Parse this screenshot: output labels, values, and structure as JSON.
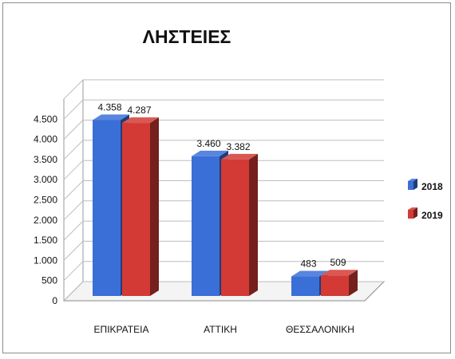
{
  "chart_data": {
    "type": "bar",
    "title": "ΛΗΣΤΕΙΕΣ",
    "categories": [
      "ΕΠΙΚΡΑΤΕΙΑ",
      "ΑΤΤΙΚΗ",
      "ΘΕΣΣΑΛΟΝΙΚΗ"
    ],
    "series": [
      {
        "name": "2018",
        "values": [
          4358,
          3460,
          483
        ],
        "labels": [
          "4.358",
          "3.460",
          "483"
        ],
        "color": "#3a6fd8"
      },
      {
        "name": "2019",
        "values": [
          4287,
          3382,
          509
        ],
        "labels": [
          "4.287",
          "3.382",
          "509"
        ],
        "color": "#d33a35"
      }
    ],
    "y_ticks": [
      0,
      500,
      1000,
      1500,
      2000,
      2500,
      3000,
      3500,
      4000,
      4500
    ],
    "y_tick_labels": [
      "0",
      "500",
      "1.000",
      "1.500",
      "2.000",
      "2.500",
      "3.000",
      "3.500",
      "4.000",
      "4.500"
    ],
    "ylim": [
      0,
      5000
    ],
    "grid": true,
    "legend": "right"
  }
}
